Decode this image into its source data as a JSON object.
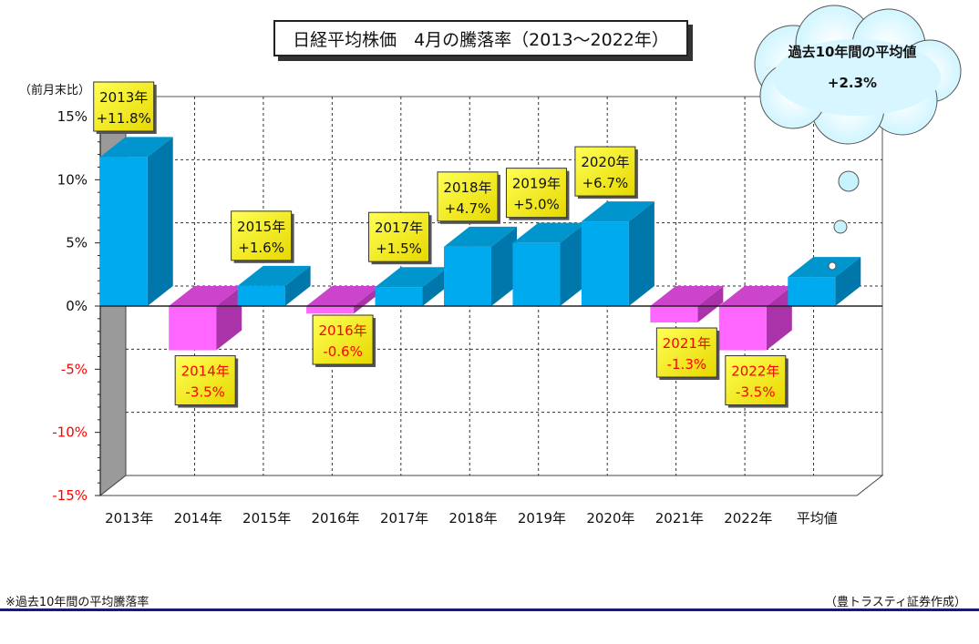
{
  "title": "日経平均株価　4月の騰落率（2013～2022年）",
  "cloud": {
    "label": "過去10年間の平均値",
    "value": "+2.3%"
  },
  "footnote": "※過去10年間の平均騰落率",
  "credit": "（豊トラスティ証券作成）",
  "colors": {
    "positive": "#00aaee",
    "negative": "#ff66ff",
    "label_bg": "#ffff00",
    "neg_text": "#ff0000"
  },
  "chart_data": {
    "type": "bar",
    "title": "日経平均株価　4月の騰落率（2013～2022年）",
    "ylabel": "（前月末比）",
    "ylim": [
      -15,
      15
    ],
    "yticks": [
      -15,
      -10,
      -5,
      0,
      5,
      10,
      15
    ],
    "ytick_labels": [
      "-15%",
      "-10%",
      "-5%",
      "0%",
      "5%",
      "10%",
      "15%"
    ],
    "categories": [
      "2013年",
      "2014年",
      "2015年",
      "2016年",
      "2017年",
      "2018年",
      "2019年",
      "2020年",
      "2021年",
      "2022年",
      "平均値"
    ],
    "values": [
      11.8,
      -3.5,
      1.6,
      -0.6,
      1.5,
      4.7,
      5.0,
      6.7,
      -1.3,
      -3.5,
      2.3
    ],
    "labels": [
      [
        "2013年",
        "+11.8%"
      ],
      [
        "2014年",
        "-3.5%"
      ],
      [
        "2015年",
        "+1.6%"
      ],
      [
        "2016年",
        "-0.6%"
      ],
      [
        "2017年",
        "+1.5%"
      ],
      [
        "2018年",
        "+4.7%"
      ],
      [
        "2019年",
        "+5.0%"
      ],
      [
        "2020年",
        "+6.7%"
      ],
      [
        "2021年",
        "-1.3%"
      ],
      [
        "2022年",
        "-3.5%"
      ],
      null
    ],
    "grid": true,
    "legend": "none"
  }
}
